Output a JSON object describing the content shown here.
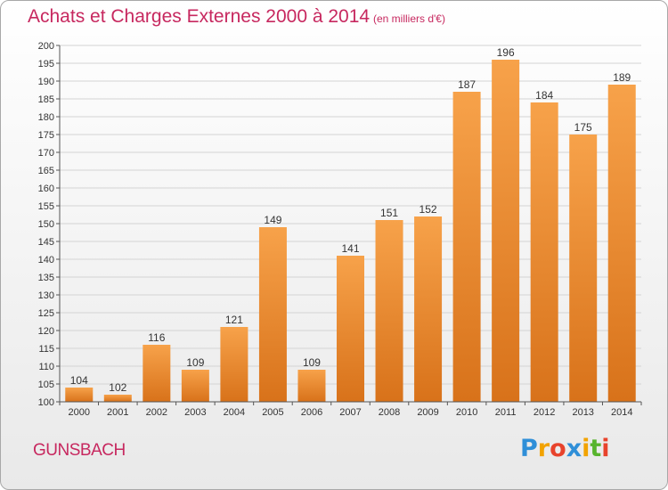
{
  "title": "Achats et Charges Externes 2000 à 2014",
  "subtitle": "(en milliers d'€)",
  "commune": "GUNSBACH",
  "logo": {
    "text": "Proxiti",
    "colors": [
      "#2f8fd8",
      "#f2a300",
      "#e8432c",
      "#2f8fd8",
      "#f2a300",
      "#58b42e",
      "#e8432c"
    ]
  },
  "colors": {
    "title": "#c7285f",
    "bar_top": "#f7a24a",
    "bar_bottom": "#d8721a"
  },
  "chart_data": {
    "type": "bar",
    "title": "Achats et Charges Externes 2000 à 2014",
    "subtitle": "(en milliers d'€)",
    "categories": [
      "2000",
      "2001",
      "2002",
      "2003",
      "2004",
      "2005",
      "2006",
      "2007",
      "2008",
      "2009",
      "2010",
      "2011",
      "2012",
      "2013",
      "2014"
    ],
    "values": [
      104,
      102,
      116,
      109,
      121,
      149,
      109,
      141,
      151,
      152,
      187,
      196,
      184,
      175,
      189
    ],
    "ylim": [
      100,
      200
    ],
    "yticks": [
      100,
      105,
      110,
      115,
      120,
      125,
      130,
      135,
      140,
      145,
      150,
      155,
      160,
      165,
      170,
      175,
      180,
      185,
      190,
      195,
      200
    ],
    "grid": true,
    "xlabel": "",
    "ylabel": ""
  }
}
